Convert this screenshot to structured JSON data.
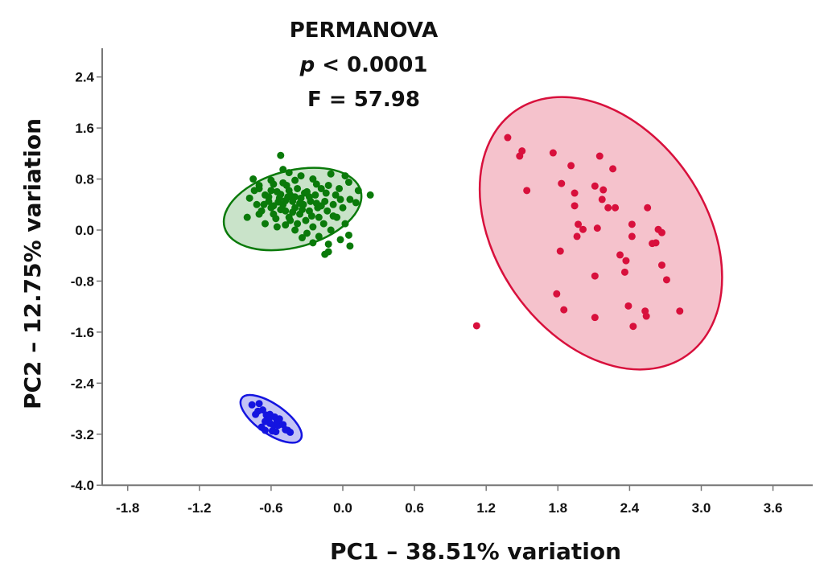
{
  "chart_data": {
    "type": "scatter",
    "title": "",
    "xlabel": "PC1 – 38.51% variation",
    "ylabel": "PC2 – 12.75% variation",
    "xlim": [
      -2.0,
      3.95
    ],
    "ylim": [
      -4.0,
      3.0
    ],
    "x_ticks": [
      "-1.8",
      "-1.2",
      "-0.6",
      "0.0",
      "0.6",
      "1.2",
      "1.8",
      "2.4",
      "3.0",
      "3.6"
    ],
    "y_ticks": [
      "2.4",
      "1.6",
      "0.8",
      "0.0",
      "-0.8",
      "-1.6",
      "-2.4",
      "-3.2",
      "-4.0"
    ],
    "grid": false,
    "annotation": {
      "line1": "PERMANOVA",
      "line2_italic": "p",
      "line2_rest": " < 0.0001",
      "line3": "F = 57.98"
    },
    "series": [
      {
        "name": "green",
        "color": "#0a7a0a",
        "fill": "#c9e3c9",
        "ellipse": {
          "cx": -0.42,
          "cy": 0.33,
          "rx": 0.59,
          "ry": 0.6,
          "angle": -15
        },
        "points": [
          [
            -0.52,
            1.17
          ],
          [
            -0.5,
            0.95
          ],
          [
            -0.75,
            0.8
          ],
          [
            -0.7,
            0.7
          ],
          [
            -0.6,
            0.78
          ],
          [
            -0.45,
            0.9
          ],
          [
            -0.35,
            0.85
          ],
          [
            -0.25,
            0.8
          ],
          [
            -0.1,
            0.88
          ],
          [
            0.02,
            0.85
          ],
          [
            0.05,
            0.75
          ],
          [
            0.13,
            0.62
          ],
          [
            0.23,
            0.55
          ],
          [
            0.06,
            0.48
          ],
          [
            0.11,
            0.43
          ],
          [
            0.05,
            -0.08
          ],
          [
            0.06,
            -0.25
          ],
          [
            -0.12,
            -0.34
          ],
          [
            -0.15,
            -0.38
          ],
          [
            -0.78,
            0.5
          ],
          [
            -0.72,
            0.4
          ],
          [
            -0.8,
            0.2
          ],
          [
            -0.68,
            0.3
          ],
          [
            -0.65,
            0.55
          ],
          [
            -0.62,
            0.45
          ],
          [
            -0.6,
            0.35
          ],
          [
            -0.58,
            0.25
          ],
          [
            -0.55,
            0.6
          ],
          [
            -0.53,
            0.5
          ],
          [
            -0.5,
            0.4
          ],
          [
            -0.48,
            0.3
          ],
          [
            -0.47,
            0.7
          ],
          [
            -0.45,
            0.2
          ],
          [
            -0.44,
            0.55
          ],
          [
            -0.42,
            0.45
          ],
          [
            -0.4,
            0.35
          ],
          [
            -0.38,
            0.65
          ],
          [
            -0.36,
            0.25
          ],
          [
            -0.35,
            0.5
          ],
          [
            -0.33,
            0.4
          ],
          [
            -0.31,
            0.15
          ],
          [
            -0.3,
            0.6
          ],
          [
            -0.28,
            0.3
          ],
          [
            -0.27,
            0.45
          ],
          [
            -0.25,
            0.05
          ],
          [
            -0.23,
            0.55
          ],
          [
            -0.21,
            0.35
          ],
          [
            -0.2,
            0.2
          ],
          [
            -0.18,
            0.65
          ],
          [
            -0.16,
            0.1
          ],
          [
            -0.15,
            0.45
          ],
          [
            -0.13,
            0.3
          ],
          [
            -0.12,
            0.7
          ],
          [
            -0.1,
            0.0
          ],
          [
            -0.08,
            0.4
          ],
          [
            -0.06,
            0.55
          ],
          [
            -0.05,
            0.2
          ],
          [
            -0.03,
            0.65
          ],
          [
            0.0,
            0.35
          ],
          [
            0.02,
            0.1
          ],
          [
            -0.02,
            -0.15
          ],
          [
            -0.2,
            -0.1
          ],
          [
            -0.3,
            -0.05
          ],
          [
            -0.4,
            0.0
          ],
          [
            -0.55,
            0.05
          ],
          [
            -0.65,
            0.1
          ],
          [
            -0.7,
            0.65
          ],
          [
            -0.58,
            0.72
          ],
          [
            -0.4,
            0.78
          ],
          [
            -0.22,
            0.72
          ],
          [
            -0.62,
            0.52
          ],
          [
            -0.52,
            0.32
          ],
          [
            -0.45,
            0.62
          ],
          [
            -0.38,
            0.1
          ],
          [
            -0.28,
            0.52
          ],
          [
            -0.18,
            0.38
          ],
          [
            -0.08,
            0.22
          ],
          [
            -0.02,
            0.48
          ],
          [
            -0.56,
            0.18
          ],
          [
            -0.48,
            0.08
          ],
          [
            -0.34,
            -0.12
          ],
          [
            -0.25,
            -0.2
          ],
          [
            -0.12,
            -0.22
          ],
          [
            -0.7,
            0.25
          ],
          [
            -0.74,
            0.62
          ],
          [
            -0.66,
            0.4
          ],
          [
            -0.54,
            0.44
          ],
          [
            -0.46,
            0.52
          ],
          [
            -0.42,
            0.28
          ],
          [
            -0.36,
            0.42
          ],
          [
            -0.32,
            0.58
          ],
          [
            -0.26,
            0.22
          ],
          [
            -0.22,
            0.42
          ],
          [
            -0.14,
            0.58
          ],
          [
            -0.6,
            0.62
          ],
          [
            -0.5,
            0.74
          ],
          [
            -0.44,
            0.15
          ],
          [
            -0.52,
            0.56
          ],
          [
            -0.48,
            0.46
          ],
          [
            -0.58,
            0.38
          ],
          [
            -0.4,
            0.52
          ],
          [
            -0.34,
            0.32
          ]
        ]
      },
      {
        "name": "red",
        "color": "#d8103c",
        "fill": "#f5c2cc",
        "ellipse": {
          "cx": 2.16,
          "cy": -0.05,
          "rx": 1.25,
          "ry": 1.64,
          "angle": 55
        },
        "points": [
          [
            1.38,
            1.45
          ],
          [
            1.5,
            1.24
          ],
          [
            1.48,
            1.16
          ],
          [
            1.76,
            1.21
          ],
          [
            1.91,
            1.01
          ],
          [
            2.15,
            1.16
          ],
          [
            2.26,
            0.96
          ],
          [
            1.54,
            0.62
          ],
          [
            1.83,
            0.73
          ],
          [
            1.94,
            0.58
          ],
          [
            2.11,
            0.69
          ],
          [
            2.18,
            0.63
          ],
          [
            1.94,
            0.38
          ],
          [
            2.17,
            0.48
          ],
          [
            2.22,
            0.35
          ],
          [
            2.28,
            0.35
          ],
          [
            2.55,
            0.35
          ],
          [
            1.97,
            0.09
          ],
          [
            2.01,
            0.01
          ],
          [
            2.13,
            0.03
          ],
          [
            2.42,
            0.09
          ],
          [
            2.42,
            -0.1
          ],
          [
            1.96,
            -0.1
          ],
          [
            2.64,
            0.01
          ],
          [
            2.67,
            -0.04
          ],
          [
            2.59,
            -0.21
          ],
          [
            2.62,
            -0.2
          ],
          [
            1.82,
            -0.33
          ],
          [
            2.32,
            -0.39
          ],
          [
            2.37,
            -0.48
          ],
          [
            2.36,
            -0.66
          ],
          [
            2.67,
            -0.55
          ],
          [
            2.11,
            -0.72
          ],
          [
            2.71,
            -0.78
          ],
          [
            1.79,
            -1.0
          ],
          [
            1.85,
            -1.25
          ],
          [
            2.39,
            -1.19
          ],
          [
            2.11,
            -1.37
          ],
          [
            2.53,
            -1.27
          ],
          [
            2.54,
            -1.35
          ],
          [
            2.43,
            -1.51
          ],
          [
            2.82,
            -1.27
          ],
          [
            1.12,
            -1.5
          ]
        ]
      },
      {
        "name": "blue",
        "color": "#1414e0",
        "fill": "#c4c4f5",
        "ellipse": {
          "cx": -0.6,
          "cy": -2.96,
          "rx": 0.3,
          "ry": 0.23,
          "angle": 35
        },
        "points": [
          [
            -0.76,
            -2.74
          ],
          [
            -0.7,
            -2.72
          ],
          [
            -0.71,
            -2.84
          ],
          [
            -0.73,
            -2.89
          ],
          [
            -0.67,
            -2.82
          ],
          [
            -0.64,
            -2.9
          ],
          [
            -0.61,
            -2.89
          ],
          [
            -0.57,
            -2.93
          ],
          [
            -0.53,
            -2.96
          ],
          [
            -0.65,
            -3.0
          ],
          [
            -0.61,
            -3.03
          ],
          [
            -0.58,
            -3.06
          ],
          [
            -0.54,
            -3.06
          ],
          [
            -0.5,
            -3.05
          ],
          [
            -0.68,
            -3.09
          ],
          [
            -0.65,
            -3.14
          ],
          [
            -0.59,
            -3.15
          ],
          [
            -0.56,
            -3.16
          ],
          [
            -0.46,
            -3.14
          ],
          [
            -0.48,
            -3.13
          ],
          [
            -0.44,
            -3.17
          ],
          [
            -0.62,
            -2.98
          ],
          [
            -0.55,
            -2.99
          ]
        ]
      }
    ]
  }
}
